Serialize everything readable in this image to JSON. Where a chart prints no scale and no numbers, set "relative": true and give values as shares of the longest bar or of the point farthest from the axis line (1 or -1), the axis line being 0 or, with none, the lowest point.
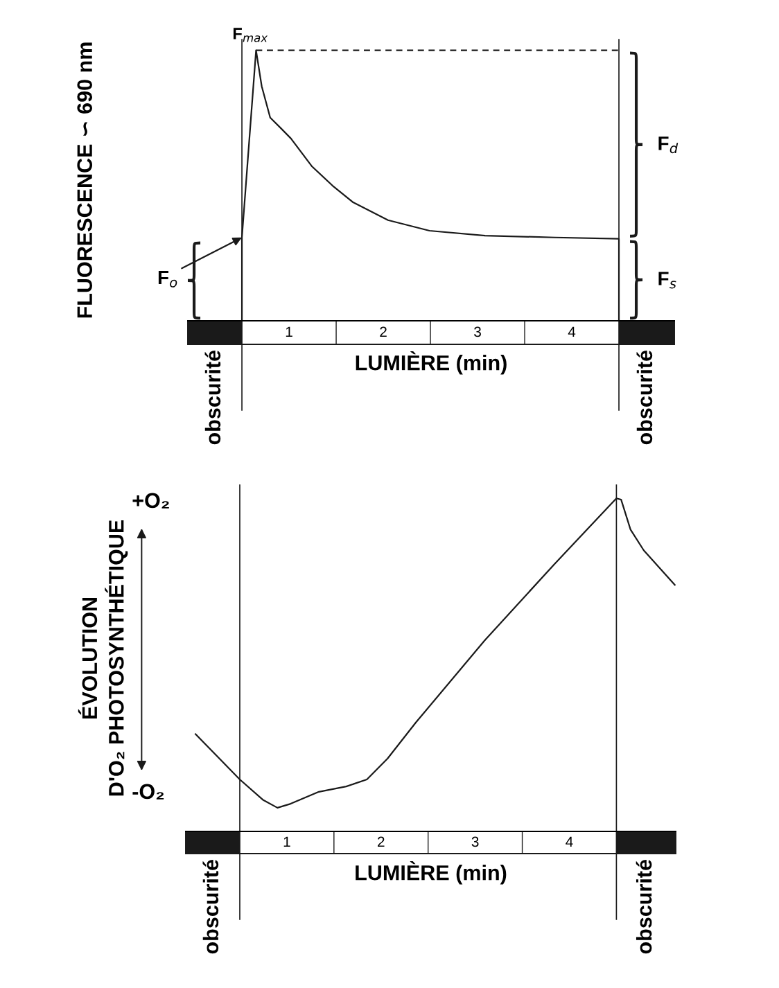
{
  "chart_data": [
    {
      "type": "line",
      "ylabel": "FLUORESCENCE ∽ 690 nm",
      "xlabel": "LUMIÈRE (min)",
      "relative": true,
      "xlim": [
        -0.574,
        4.588
      ],
      "xticks": [
        {
          "value": 0.5,
          "label": "1"
        },
        {
          "value": 1.5,
          "label": "2"
        },
        {
          "value": 2.5,
          "label": "3"
        },
        {
          "value": 3.5,
          "label": "4"
        }
      ],
      "series": [
        {
          "color": "#1a1a1a",
          "x": [
            0,
            0,
            0.15,
            0.21,
            0.3,
            0.41,
            0.52,
            0.74,
            0.96,
            1.18,
            1.55,
            1.99,
            2.58,
            3.32,
            4.0,
            4.0
          ],
          "values": [
            0,
            0.308,
            1.0,
            0.867,
            0.751,
            0.713,
            0.674,
            0.572,
            0.5,
            0.438,
            0.372,
            0.333,
            0.315,
            0.308,
            0.303,
            0
          ]
        },
        {
          "color": "#1a1a1a",
          "line_style": "dashed",
          "x": [
            0.15,
            4.0
          ],
          "values": [
            1.0,
            1.0
          ]
        }
      ],
      "ref_lines": [
        {
          "axis": "x",
          "value": 0
        },
        {
          "axis": "x",
          "value": 4.0
        }
      ],
      "annotations": [
        {
          "text": "F$_{max}$",
          "x": 0.15,
          "y": 1.0
        },
        {
          "text": "F$_{d}$",
          "x": 4.0,
          "y": 0.65
        },
        {
          "text": "F$_{s}$",
          "x": 4.0,
          "y": 0.15
        },
        {
          "text": "F$_{o}$",
          "x": 0,
          "y": 0.308
        },
        "obscurité",
        "obscurité"
      ],
      "grid": false
    },
    {
      "type": "line",
      "ylabel": "ÉVOLUTION\nD'O₂ PHOTOSYNTHÉTIQUE",
      "xlabel": "LUMIÈRE (min)",
      "relative": true,
      "xlim": [
        -0.574,
        4.63
      ],
      "xticks": [
        {
          "value": 0.5,
          "label": "1"
        },
        {
          "value": 1.5,
          "label": "2"
        },
        {
          "value": 2.5,
          "label": "3"
        },
        {
          "value": 3.5,
          "label": "4"
        }
      ],
      "series": [
        {
          "color": "#1a1a1a",
          "x": [
            -0.47,
            0,
            0.25,
            0.4,
            0.54,
            0.84,
            1.13,
            1.35,
            1.57,
            1.87,
            2.6,
            3.34,
            4.0,
            4.05,
            4.15,
            4.29,
            4.62
          ],
          "values": [
            0.292,
            0.156,
            0.094,
            0.071,
            0.083,
            0.119,
            0.135,
            0.156,
            0.219,
            0.327,
            0.573,
            0.802,
            1.0,
            0.996,
            0.906,
            0.844,
            0.74
          ]
        }
      ],
      "ref_lines": [
        {
          "axis": "x",
          "value": 0
        },
        {
          "axis": "x",
          "value": 4.0
        }
      ],
      "annotations": [
        "+O₂",
        "-O₂",
        "obscurité",
        "obscurité"
      ],
      "grid": false
    }
  ]
}
